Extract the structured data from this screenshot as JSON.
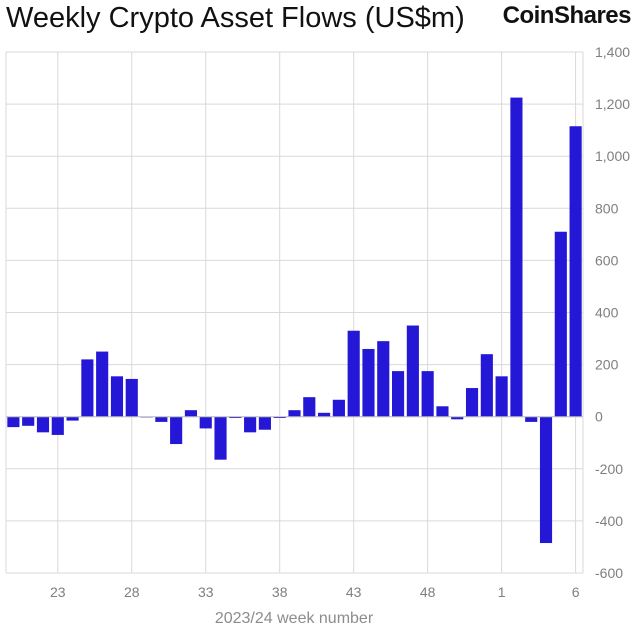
{
  "header": {
    "brand": "CoinShares"
  },
  "chart_data": {
    "type": "bar",
    "title": "Weekly Crypto Asset Flows (US$m)",
    "xlabel": "2023/24 week number",
    "ylabel": "",
    "ylim": [
      -600,
      1400
    ],
    "yticks": [
      1400,
      1200,
      1000,
      800,
      600,
      400,
      200,
      0,
      -200,
      -400,
      -600
    ],
    "ytick_labels": [
      "1,400",
      "1,200",
      "1,000",
      "800",
      "600",
      "400",
      "200",
      "0",
      "-200",
      "-400",
      "-600"
    ],
    "categories": [
      "20",
      "21",
      "22",
      "23",
      "24",
      "25",
      "26",
      "27",
      "28",
      "29",
      "30",
      "31",
      "32",
      "33",
      "34",
      "35",
      "36",
      "37",
      "38",
      "39",
      "40",
      "41",
      "42",
      "43",
      "44",
      "45",
      "46",
      "47",
      "48",
      "49",
      "50",
      "51",
      "52",
      "1",
      "2",
      "3",
      "4",
      "5",
      "6"
    ],
    "xtick_labels": [
      "23",
      "28",
      "33",
      "38",
      "43",
      "48",
      "1",
      "6"
    ],
    "values": [
      -40,
      -35,
      -60,
      -70,
      -15,
      220,
      250,
      155,
      145,
      0,
      -20,
      -105,
      25,
      -45,
      -165,
      -5,
      -60,
      -50,
      -5,
      25,
      75,
      15,
      65,
      330,
      260,
      290,
      175,
      350,
      175,
      40,
      -10,
      110,
      240,
      155,
      1225,
      -20,
      -485,
      710,
      1115
    ],
    "color": "#2418d6",
    "grid": true,
    "yaxis_side": "right"
  }
}
